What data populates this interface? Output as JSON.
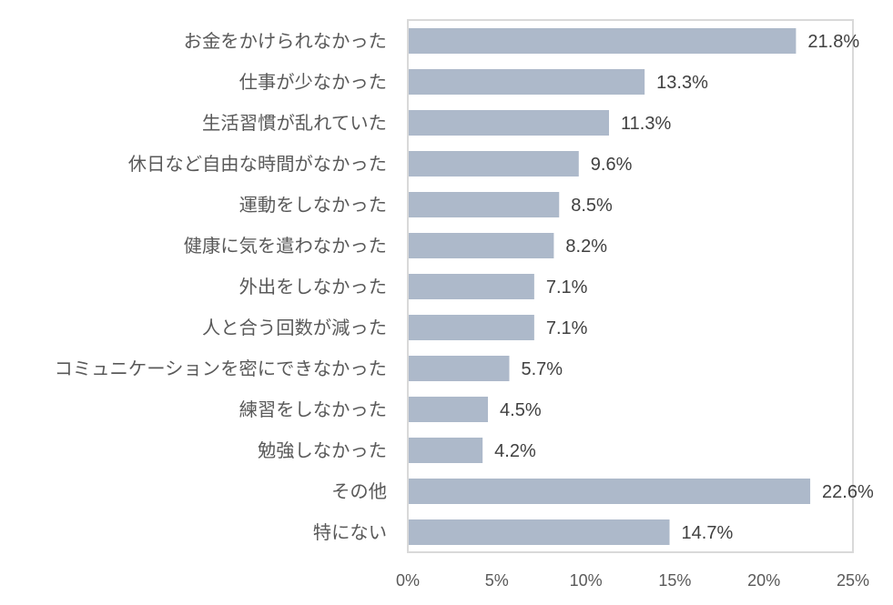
{
  "chart_data": {
    "type": "bar",
    "orientation": "horizontal",
    "categories": [
      "お金をかけられなかった",
      "仕事が少なかった",
      "生活習慣が乱れていた",
      "休日など自由な時間がなかった",
      "運動をしなかった",
      "健康に気を遣わなかった",
      "外出をしなかった",
      "人と合う回数が減った",
      "コミュニケーションを密にできなかった",
      "練習をしなかった",
      "勉強しなかった",
      "その他",
      "特にない"
    ],
    "values": [
      21.8,
      13.3,
      11.3,
      9.6,
      8.5,
      8.2,
      7.1,
      7.1,
      5.7,
      4.5,
      4.2,
      22.6,
      14.7
    ],
    "value_labels": [
      "21.8%",
      "13.3%",
      "11.3%",
      "9.6%",
      "8.5%",
      "8.2%",
      "7.1%",
      "7.1%",
      "5.7%",
      "4.5%",
      "4.2%",
      "22.6%",
      "14.7%"
    ],
    "xlim": [
      0,
      25
    ],
    "x_ticks": [
      "0%",
      "5%",
      "10%",
      "15%",
      "20%",
      "25%"
    ],
    "bar_color": "#adb9ca",
    "frame_color": "#d9d9d9",
    "grid": false,
    "legend": "none",
    "title": "",
    "xlabel": "",
    "ylabel": ""
  }
}
